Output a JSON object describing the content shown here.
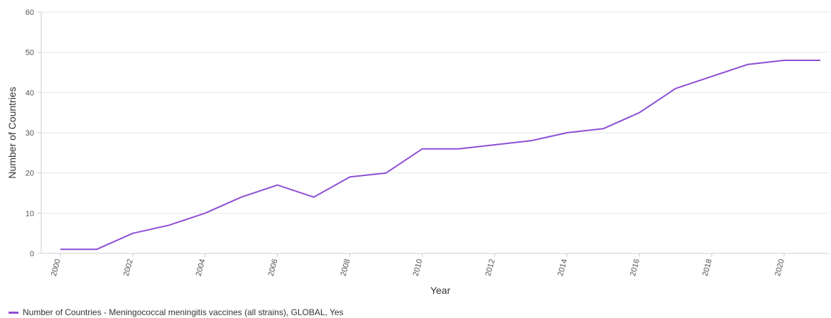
{
  "chart_data": {
    "type": "line",
    "xlabel": "Year",
    "ylabel": "Number of Countries",
    "xlim": [
      2000,
      2021
    ],
    "ylim": [
      0,
      60
    ],
    "x_ticks": [
      2000,
      2002,
      2004,
      2006,
      2008,
      2010,
      2012,
      2014,
      2016,
      2018,
      2020
    ],
    "y_ticks": [
      0,
      10,
      20,
      30,
      40,
      50,
      60
    ],
    "grid": true,
    "legend_position": "bottom-left",
    "series": [
      {
        "name": "Number of Countries - Meningococcal meningitis vaccines (all strains), GLOBAL, Yes",
        "color": "#8e4fd6",
        "x": [
          2000,
          2001,
          2002,
          2003,
          2004,
          2005,
          2006,
          2007,
          2008,
          2009,
          2010,
          2011,
          2012,
          2013,
          2014,
          2015,
          2016,
          2017,
          2018,
          2019,
          2020,
          2021
        ],
        "values": [
          1,
          1,
          5,
          7,
          10,
          14,
          17,
          14,
          19,
          20,
          26,
          26,
          27,
          28,
          30,
          31,
          35,
          41,
          44,
          47,
          48,
          48
        ]
      }
    ]
  }
}
